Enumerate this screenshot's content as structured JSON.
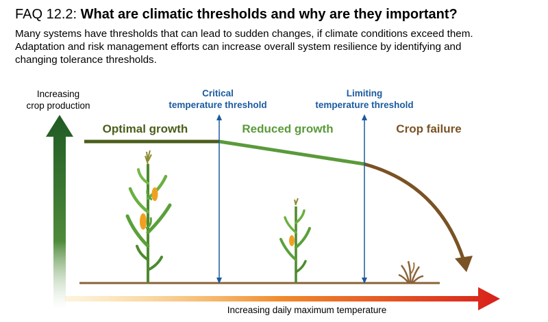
{
  "header": {
    "faq_number": "FAQ 12.2:",
    "question": "What are climatic thresholds and why are they important?"
  },
  "intro": {
    "line1": "Many systems have thresholds that can lead to sudden changes, if climate conditions exceed them.",
    "line2": "Adaptation and risk management efforts can increase overall system resilience by identifying and",
    "line3": "changing tolerance thresholds."
  },
  "axes": {
    "y_label_line1": "Increasing",
    "y_label_line2": "crop production",
    "x_label": "Increasing daily maximum temperature"
  },
  "thresholds": {
    "critical_line1": "Critical",
    "critical_line2": "temperature threshold",
    "limiting_line1": "Limiting",
    "limiting_line2": "temperature threshold"
  },
  "zones": {
    "optimal": "Optimal growth",
    "reduced": "Reduced growth",
    "failure": "Crop failure"
  },
  "colors": {
    "optimal": "#4a5e1a",
    "reduced": "#5a9a3a",
    "failure": "#7a5224",
    "threshold": "#1a5a9e",
    "ground": "#8a6238",
    "y_arrow": "#1f5a24",
    "x_arrow_start": "#f5b23a",
    "x_arrow_end": "#d8201c"
  },
  "icons": [
    "tall-maize-plant-icon",
    "medium-maize-plant-icon",
    "withered-plant-icon"
  ]
}
